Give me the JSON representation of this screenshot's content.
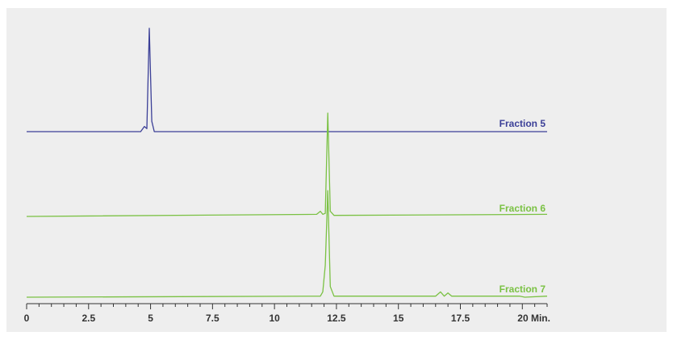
{
  "chart_data": {
    "type": "line",
    "title": "",
    "xlabel": "",
    "ylabel": "",
    "x_unit_label": "Min.",
    "xlim": [
      0,
      21
    ],
    "xticks": [
      0,
      2.5,
      5,
      7.5,
      10,
      12.5,
      15,
      17.5,
      20
    ],
    "xtick_labels": [
      "0",
      "2.5",
      "5",
      "7.5",
      "10",
      "12.5",
      "15",
      "17.5",
      "20 Min."
    ],
    "grid": false,
    "legend": "inline-right",
    "series": [
      {
        "name": "Fraction 5",
        "color": "#3b3f97",
        "x": [
          0,
          4.6,
          4.75,
          4.85,
          4.95,
          5.05,
          5.15,
          5.3,
          21
        ],
        "y": [
          0,
          0.0,
          0.05,
          0.03,
          1.0,
          0.1,
          0.0,
          0.0,
          0.0
        ]
      },
      {
        "name": "Fraction 6",
        "color": "#7ac143",
        "x": [
          0,
          11.7,
          11.85,
          11.95,
          12.05,
          12.15,
          12.25,
          12.4,
          21
        ],
        "y": [
          0,
          0.02,
          0.05,
          0.02,
          0.03,
          1.0,
          0.05,
          0.01,
          0.02
        ]
      },
      {
        "name": "Fraction 7",
        "color": "#7ac143",
        "x": [
          0,
          11.85,
          11.95,
          12.05,
          12.15,
          12.25,
          12.4,
          16.5,
          16.7,
          16.85,
          17.0,
          17.15,
          19.9,
          20.1,
          21
        ],
        "y": [
          0,
          0.01,
          0.05,
          0.3,
          1.0,
          0.1,
          0.01,
          0.01,
          0.05,
          0.01,
          0.04,
          0.01,
          0.01,
          0.0,
          0.01
        ]
      }
    ]
  }
}
